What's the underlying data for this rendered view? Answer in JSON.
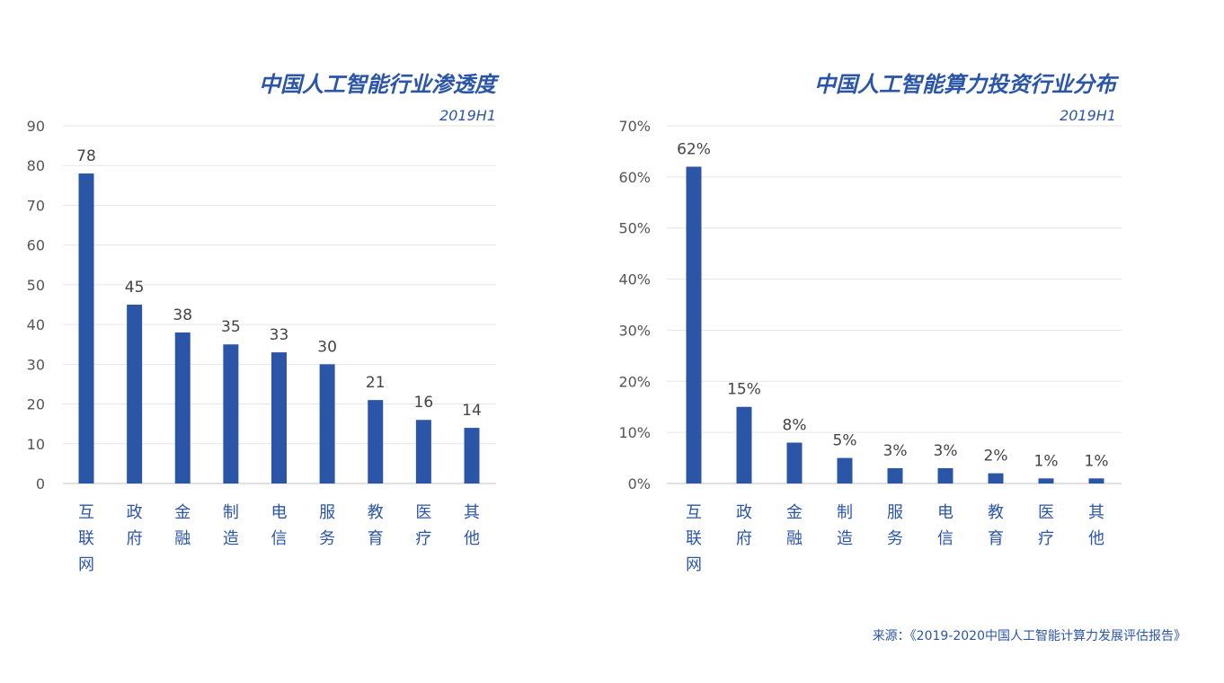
{
  "charts": [
    {
      "type": "bar",
      "title": "中国人工智能行业渗透度",
      "subtitle": "2019H1",
      "categories": [
        "互联网",
        "政府",
        "金融",
        "制造",
        "电信",
        "服务",
        "教育",
        "医疗",
        "其他"
      ],
      "values": [
        78,
        45,
        38,
        35,
        33,
        30,
        21,
        16,
        14
      ],
      "data_labels": [
        "78",
        "45",
        "38",
        "35",
        "33",
        "30",
        "21",
        "16",
        "14"
      ],
      "yticks": [
        "0",
        "10",
        "20",
        "30",
        "40",
        "50",
        "60",
        "70",
        "80",
        "90"
      ],
      "ylim": [
        0,
        90
      ],
      "xlabel": "",
      "ylabel": "",
      "grid": true,
      "bar_color": "#2b56a8"
    },
    {
      "type": "bar",
      "title": "中国人工智能算力投资行业分布",
      "subtitle": "2019H1",
      "categories": [
        "互联网",
        "政府",
        "金融",
        "制造",
        "服务",
        "电信",
        "教育",
        "医疗",
        "其他"
      ],
      "values": [
        62,
        15,
        8,
        5,
        3,
        3,
        2,
        1,
        1
      ],
      "data_labels": [
        "62%",
        "15%",
        "8%",
        "5%",
        "3%",
        "3%",
        "2%",
        "1%",
        "1%"
      ],
      "yticks": [
        "0%",
        "10%",
        "20%",
        "30%",
        "40%",
        "50%",
        "60%",
        "70%"
      ],
      "ylim": [
        0,
        70
      ],
      "xlabel": "",
      "ylabel": "",
      "grid": true,
      "bar_color": "#2b56a8"
    }
  ],
  "source": "来源：《2019-2020中国人工智能计算力发展评估报告》"
}
